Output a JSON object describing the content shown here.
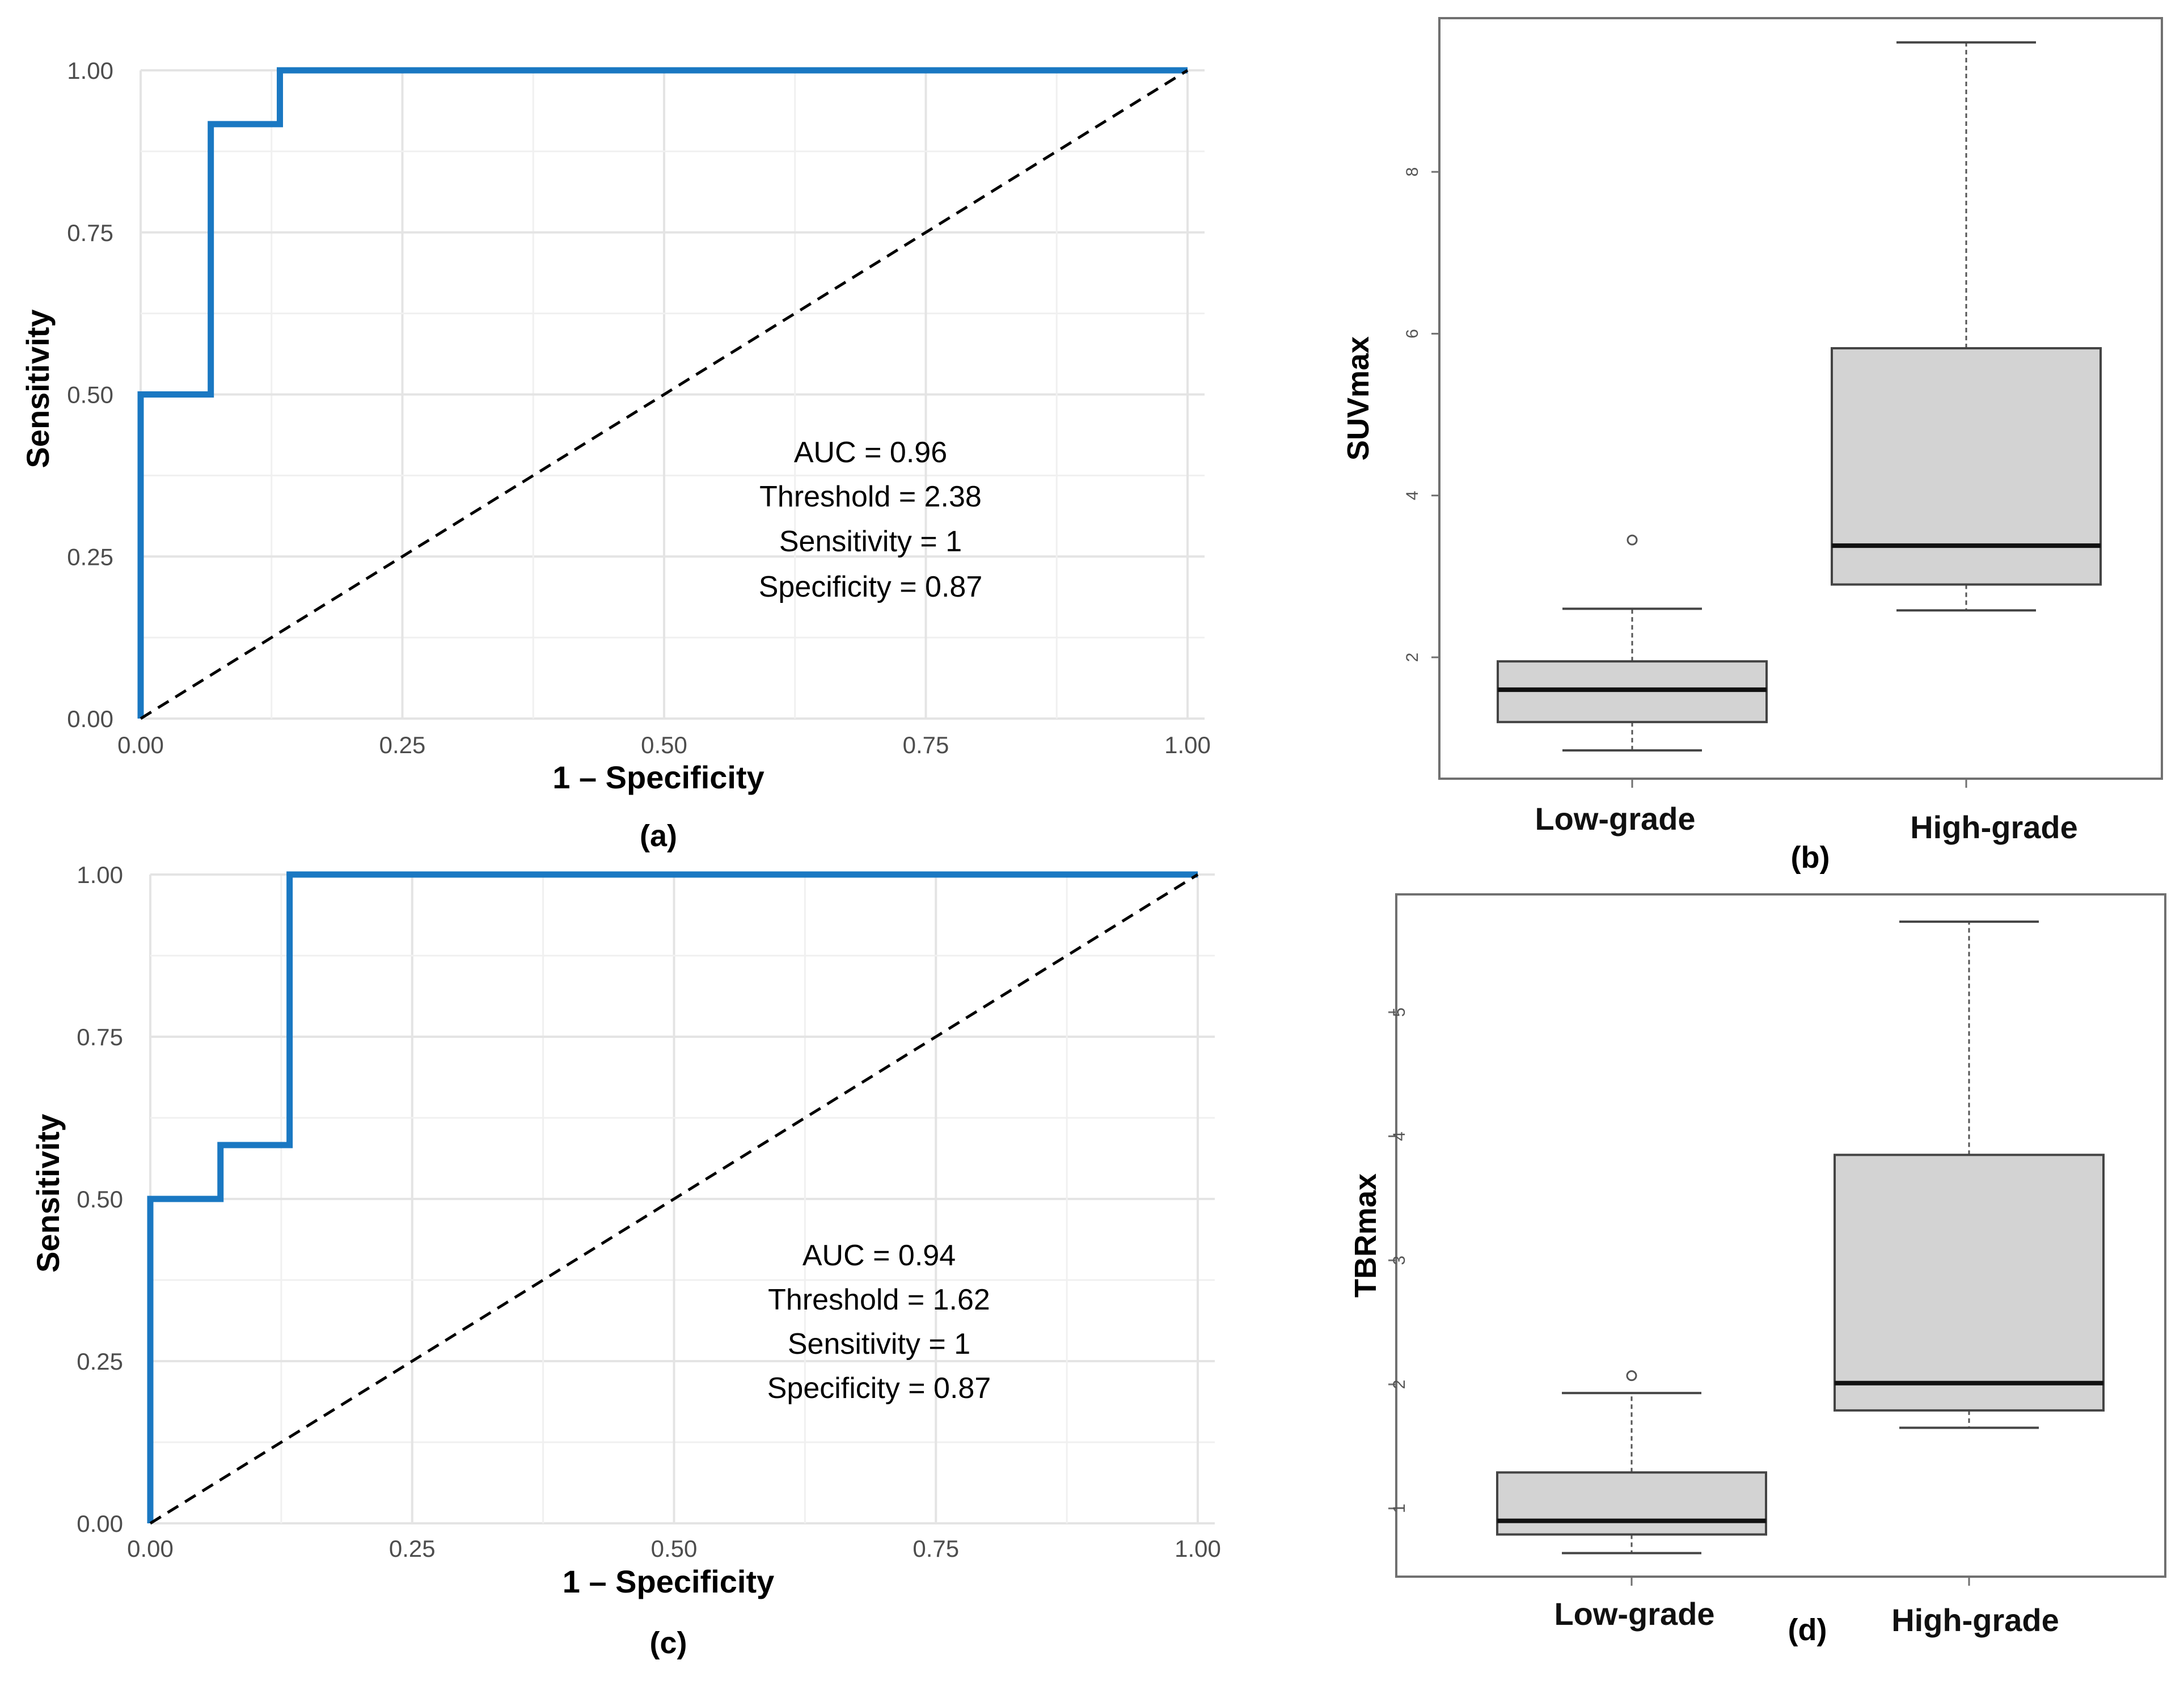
{
  "chart_data": [
    {
      "id": "a",
      "type": "line",
      "panel_label": "(a)",
      "title": "",
      "xlabel": "1 – Specificity",
      "ylabel": "Sensitivity",
      "xlim": [
        0,
        1
      ],
      "ylim": [
        0,
        1
      ],
      "grid": true,
      "xticks": [
        "0.00",
        "0.25",
        "0.50",
        "0.75",
        "1.00"
      ],
      "yticks": [
        "0.00",
        "0.25",
        "0.50",
        "0.75",
        "1.00"
      ],
      "series": [
        {
          "name": "ROC",
          "color": "#1a78c2",
          "style": "step",
          "x": [
            0,
            0,
            0.067,
            0.067,
            0.133,
            0.133,
            1.0
          ],
          "y": [
            0,
            0.5,
            0.5,
            0.917,
            0.917,
            1.0,
            1.0
          ]
        },
        {
          "name": "reference",
          "color": "#000000",
          "style": "dashed",
          "x": [
            0,
            1
          ],
          "y": [
            0,
            1
          ]
        }
      ],
      "annotations": [
        "AUC =  0.96",
        "Threshold = 2.38",
        "Sensitivity = 1",
        "Specificity = 0.87"
      ]
    },
    {
      "id": "b",
      "type": "boxplot",
      "panel_label": "(b)",
      "ylabel": "SUVmax",
      "ylim": [
        0.5,
        9.9
      ],
      "yticks": [
        2,
        4,
        6,
        8
      ],
      "categories": [
        "Low-grade",
        "High-grade"
      ],
      "box_color": "#d3d3d3",
      "boxes": [
        {
          "whisker_low": 0.85,
          "q1": 1.2,
          "median": 1.6,
          "q3": 1.95,
          "whisker_high": 2.6,
          "outliers": [
            3.45
          ]
        },
        {
          "whisker_low": 2.58,
          "q1": 2.9,
          "median": 3.38,
          "q3": 5.82,
          "whisker_high": 9.6,
          "outliers": []
        }
      ]
    },
    {
      "id": "c",
      "type": "line",
      "panel_label": "(c)",
      "title": "",
      "xlabel": "1 – Specificity",
      "ylabel": "Sensitivity",
      "xlim": [
        0,
        1
      ],
      "ylim": [
        0,
        1
      ],
      "grid": true,
      "xticks": [
        "0.00",
        "0.25",
        "0.50",
        "0.75",
        "1.00"
      ],
      "yticks": [
        "0.00",
        "0.25",
        "0.50",
        "0.75",
        "1.00"
      ],
      "series": [
        {
          "name": "ROC",
          "color": "#1a78c2",
          "style": "step",
          "x": [
            0,
            0,
            0.067,
            0.067,
            0.133,
            0.133,
            1.0
          ],
          "y": [
            0,
            0.5,
            0.5,
            0.583,
            0.583,
            1.0,
            1.0
          ]
        },
        {
          "name": "reference",
          "color": "#000000",
          "style": "dashed",
          "x": [
            0,
            1
          ],
          "y": [
            0,
            1
          ]
        }
      ],
      "annotations": [
        "AUC =  0.94",
        "Threshold = 1.62",
        "Sensitivity = 1",
        "Specificity = 0.87"
      ]
    },
    {
      "id": "d",
      "type": "boxplot",
      "panel_label": "(d)",
      "ylabel": "TBRmax",
      "ylim": [
        0.45,
        5.95
      ],
      "yticks": [
        1,
        2,
        3,
        4,
        5
      ],
      "categories": [
        "Low-grade",
        "High-grade"
      ],
      "box_color": "#d3d3d3",
      "boxes": [
        {
          "whisker_low": 0.64,
          "q1": 0.79,
          "median": 0.9,
          "q3": 1.29,
          "whisker_high": 1.93,
          "outliers": [
            2.07
          ]
        },
        {
          "whisker_low": 1.65,
          "q1": 1.79,
          "median": 2.01,
          "q3": 3.85,
          "whisker_high": 5.73,
          "outliers": []
        }
      ]
    }
  ]
}
